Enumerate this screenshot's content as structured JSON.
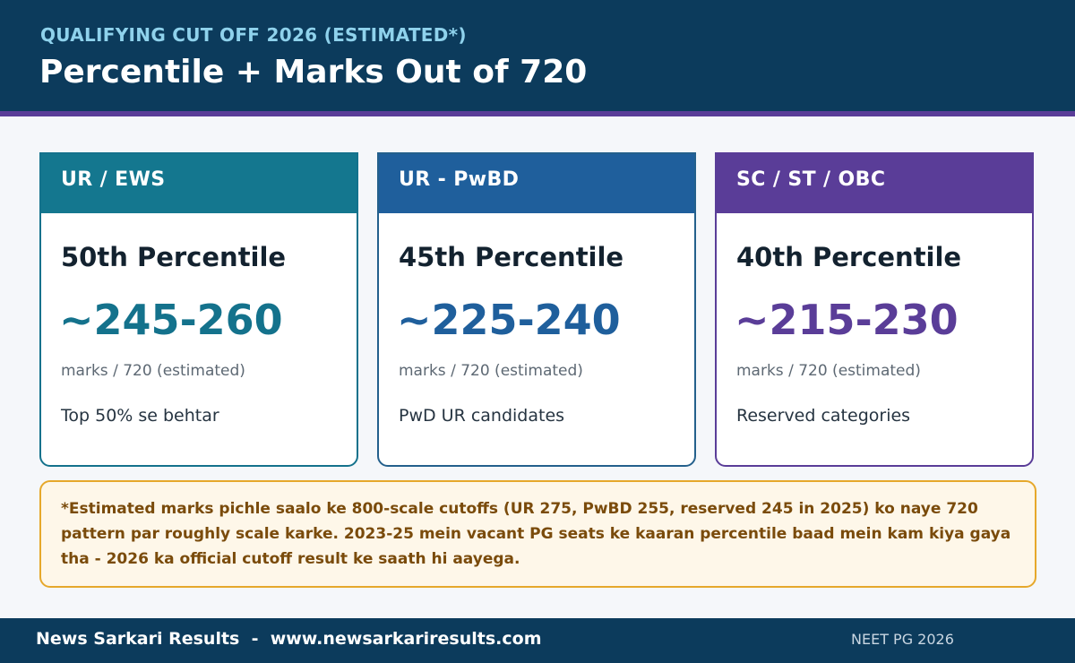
{
  "header": {
    "eyebrow": "QUALIFYING CUT OFF 2026 (ESTIMATED*)",
    "title": "Percentile + Marks Out of 720"
  },
  "cards": [
    {
      "category": "UR / EWS",
      "percentile": "50th Percentile",
      "marks_range": "~245-260",
      "unit": "marks / 720 (estimated)",
      "description": "Top 50% se behtar"
    },
    {
      "category": "UR - PwBD",
      "percentile": "45th Percentile",
      "marks_range": "~225-240",
      "unit": "marks / 720 (estimated)",
      "description": "PwD UR candidates"
    },
    {
      "category": "SC / ST / OBC",
      "percentile": "40th Percentile",
      "marks_range": "~215-230",
      "unit": "marks / 720 (estimated)",
      "description": "Reserved categories"
    }
  ],
  "note": {
    "text": "*Estimated marks pichle saalo ke 800-scale cutoffs (UR 275, PwBD 255, reserved 245 in 2025) ko naye 720 pattern par roughly scale karke. 2023-25 mein vacant PG seats ke kaaran percentile baad mein kam kiya gaya tha - 2026 ka official cutoff result ke saath hi aayega."
  },
  "footer": {
    "brand": "News Sarkari Results  -  www.newsarkariresults.com",
    "tag": "NEET PG 2026"
  },
  "colors": {
    "header_bg": "#0c3b5c",
    "accent": "#5a3d98",
    "card1": "#14778f",
    "card2": "#1f5f9c",
    "card3": "#5a3d98",
    "note_bg": "#fef7e9",
    "note_border": "#e6a82b"
  }
}
